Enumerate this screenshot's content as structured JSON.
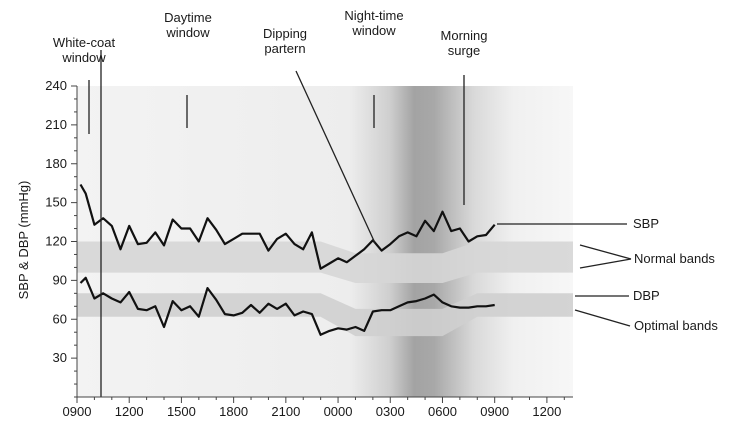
{
  "chart_data": {
    "type": "line",
    "ylabel": "SBP & DBP (mmHg)",
    "xlabel": "",
    "ylim": [
      0,
      240
    ],
    "xlim": [
      9,
      37.5
    ],
    "y_ticks": [
      "30",
      "60",
      "90",
      "120",
      "150",
      "180",
      "210",
      "240"
    ],
    "y_tick_values": [
      30,
      60,
      90,
      120,
      150,
      180,
      210,
      240
    ],
    "x_ticks": [
      "0900",
      "1200",
      "1500",
      "1800",
      "2100",
      "0000",
      "0300",
      "0600",
      "0900",
      "1200"
    ],
    "x_tick_values": [
      9,
      12,
      15,
      18,
      21,
      24,
      27,
      30,
      33,
      36
    ],
    "x_note": "x values are hours on a continuous clock; 24 = 0000 of the next day, 33 = 0900 of the next day",
    "series": [
      {
        "name": "SBP",
        "x": [
          9.2,
          9.5,
          10.0,
          10.5,
          11.0,
          11.5,
          12.0,
          12.5,
          13.0,
          13.5,
          14.0,
          14.5,
          15.0,
          15.5,
          16.0,
          16.5,
          17.0,
          17.5,
          18.0,
          18.5,
          19.0,
          19.5,
          20.0,
          20.5,
          21.0,
          21.5,
          22.0,
          22.5,
          23.0,
          23.5,
          24.0,
          24.5,
          25.0,
          25.5,
          26.0,
          26.5,
          27.0,
          27.5,
          28.0,
          28.5,
          29.0,
          29.5,
          30.0,
          30.5,
          31.0,
          31.5,
          32.0,
          32.5,
          33.0
        ],
        "values": [
          164,
          157,
          133,
          138,
          132,
          114,
          132,
          118,
          119,
          127,
          117,
          137,
          130,
          130,
          120,
          138,
          129,
          118,
          122,
          126,
          126,
          126,
          113,
          122,
          126,
          118,
          114,
          127,
          99,
          103,
          107,
          104,
          109,
          114,
          121,
          113,
          118,
          124,
          127,
          124,
          136,
          128,
          143,
          128,
          130,
          120,
          124,
          125,
          133
        ]
      },
      {
        "name": "DBP",
        "x": [
          9.2,
          9.5,
          10.0,
          10.5,
          11.0,
          11.5,
          12.0,
          12.5,
          13.0,
          13.5,
          14.0,
          14.5,
          15.0,
          15.5,
          16.0,
          16.5,
          17.0,
          17.5,
          18.0,
          18.5,
          19.0,
          19.5,
          20.0,
          20.5,
          21.0,
          21.5,
          22.0,
          22.5,
          23.0,
          23.5,
          24.0,
          24.5,
          25.0,
          25.5,
          26.0,
          26.5,
          27.0,
          27.5,
          28.0,
          28.5,
          29.0,
          29.5,
          30.0,
          30.5,
          31.0,
          31.5,
          32.0,
          32.5,
          33.0
        ],
        "values": [
          88,
          92,
          76,
          80,
          76,
          73,
          81,
          68,
          67,
          70,
          54,
          74,
          67,
          70,
          62,
          84,
          75,
          64,
          63,
          65,
          71,
          65,
          72,
          68,
          72,
          63,
          66,
          64,
          48,
          51,
          53,
          52,
          54,
          51,
          66,
          67,
          67,
          70,
          73,
          74,
          76,
          79,
          73,
          70,
          69,
          69,
          70,
          70,
          71
        ]
      }
    ],
    "shaded_regions": [
      {
        "label_key": "normal_band_sbp",
        "x": [
          9,
          23,
          25,
          30,
          32,
          37.5
        ],
        "lower": [
          96,
          96,
          88,
          88,
          96,
          96
        ],
        "upper": [
          120,
          120,
          111,
          111,
          120,
          120
        ],
        "color": "#d6d6d6"
      },
      {
        "label_key": "normal_band_dbp",
        "x": [
          9,
          23,
          25,
          30,
          32,
          37.5
        ],
        "lower": [
          62,
          62,
          47,
          47,
          62,
          62
        ],
        "upper": [
          80,
          80,
          68,
          68,
          80,
          80
        ],
        "color": "#cfcfcf"
      }
    ],
    "annotations": {
      "white_coat": "White-coat window",
      "daytime": "Daytime window",
      "dipping": "Dipping partern",
      "night": "Night-time window",
      "morning": "Morning surge",
      "sbp": "SBP",
      "normal_bands": "Normal bands",
      "dbp": "DBP",
      "optimal_bands": "Optimal bands"
    },
    "grid": false,
    "legend": "none"
  }
}
